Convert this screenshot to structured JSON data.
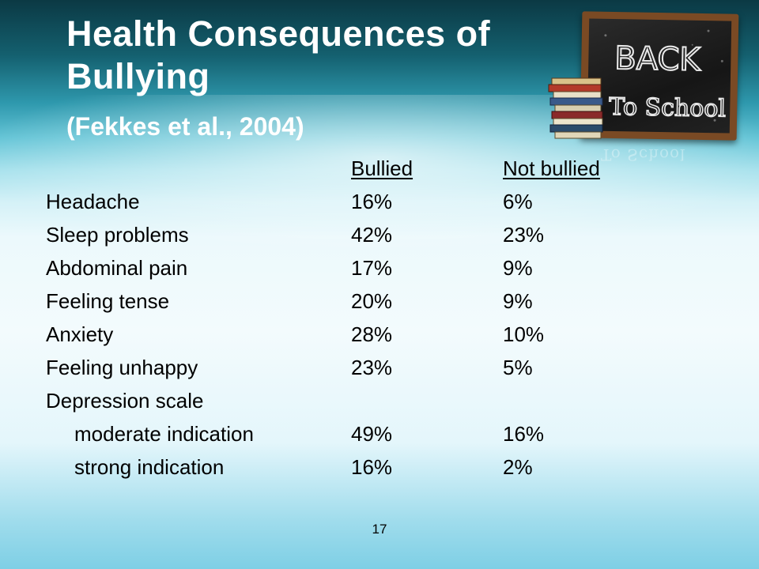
{
  "slide": {
    "title_line1": "Health Consequences of",
    "title_line2": "Bullying",
    "citation": "(Fekkes et al., 2004)",
    "page_number": "17"
  },
  "illustration": {
    "board_text_line1": "BACK",
    "board_text_line2": "To School",
    "reflection_text": "To School"
  },
  "table": {
    "headers": {
      "bullied": "Bullied",
      "not_bullied": "Not bullied"
    },
    "rows": [
      {
        "label": "Headache",
        "bullied": "16%",
        "not_bullied": "6%"
      },
      {
        "label": "Sleep problems",
        "bullied": "42%",
        "not_bullied": "23%"
      },
      {
        "label": "Abdominal pain",
        "bullied": "17%",
        "not_bullied": "9%"
      },
      {
        "label": "Feeling tense",
        "bullied": "20%",
        "not_bullied": "9%"
      },
      {
        "label": "Anxiety",
        "bullied": "28%",
        "not_bullied": "10%"
      },
      {
        "label": "Feeling unhappy",
        "bullied": "23%",
        "not_bullied": "5%"
      },
      {
        "label": "Depression scale",
        "bullied": "",
        "not_bullied": ""
      },
      {
        "label": "moderate indication",
        "bullied": "49%",
        "not_bullied": "16%"
      },
      {
        "label": "strong indication",
        "bullied": "16%",
        "not_bullied": "2%"
      }
    ]
  }
}
